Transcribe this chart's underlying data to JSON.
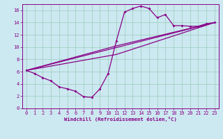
{
  "bg_color": "#cce8f0",
  "grid_color": "#99ccbb",
  "line_color": "#880088",
  "spine_color": "#880088",
  "xlim": [
    -0.5,
    23.5
  ],
  "ylim": [
    0,
    17
  ],
  "xticks": [
    0,
    1,
    2,
    3,
    4,
    5,
    6,
    7,
    8,
    9,
    10,
    11,
    12,
    13,
    14,
    15,
    16,
    17,
    18,
    19,
    20,
    21,
    22,
    23
  ],
  "yticks": [
    0,
    2,
    4,
    6,
    8,
    10,
    12,
    14,
    16
  ],
  "xlabel": "Windchill (Refroidissement éolien,°C)",
  "line1_x": [
    0,
    1,
    2,
    3,
    4,
    5,
    6,
    7,
    8,
    9,
    10,
    11,
    12,
    13,
    14,
    15,
    16,
    17,
    18,
    19,
    20,
    21,
    22,
    23
  ],
  "line1_y": [
    6.2,
    5.7,
    5.0,
    4.5,
    3.5,
    3.2,
    2.8,
    1.9,
    1.8,
    3.2,
    5.7,
    11.0,
    15.7,
    16.3,
    16.7,
    16.3,
    14.8,
    15.3,
    13.5,
    13.5,
    13.4,
    13.4,
    13.8,
    14.0
  ],
  "line2_x": [
    0,
    23
  ],
  "line2_y": [
    6.2,
    14.0
  ],
  "line3_x": [
    0,
    11,
    23
  ],
  "line3_y": [
    6.2,
    8.8,
    14.0
  ],
  "line4_x": [
    0,
    11,
    23
  ],
  "line4_y": [
    6.2,
    10.2,
    14.0
  ],
  "tick_fontsize": 5,
  "label_fontsize": 5.2
}
